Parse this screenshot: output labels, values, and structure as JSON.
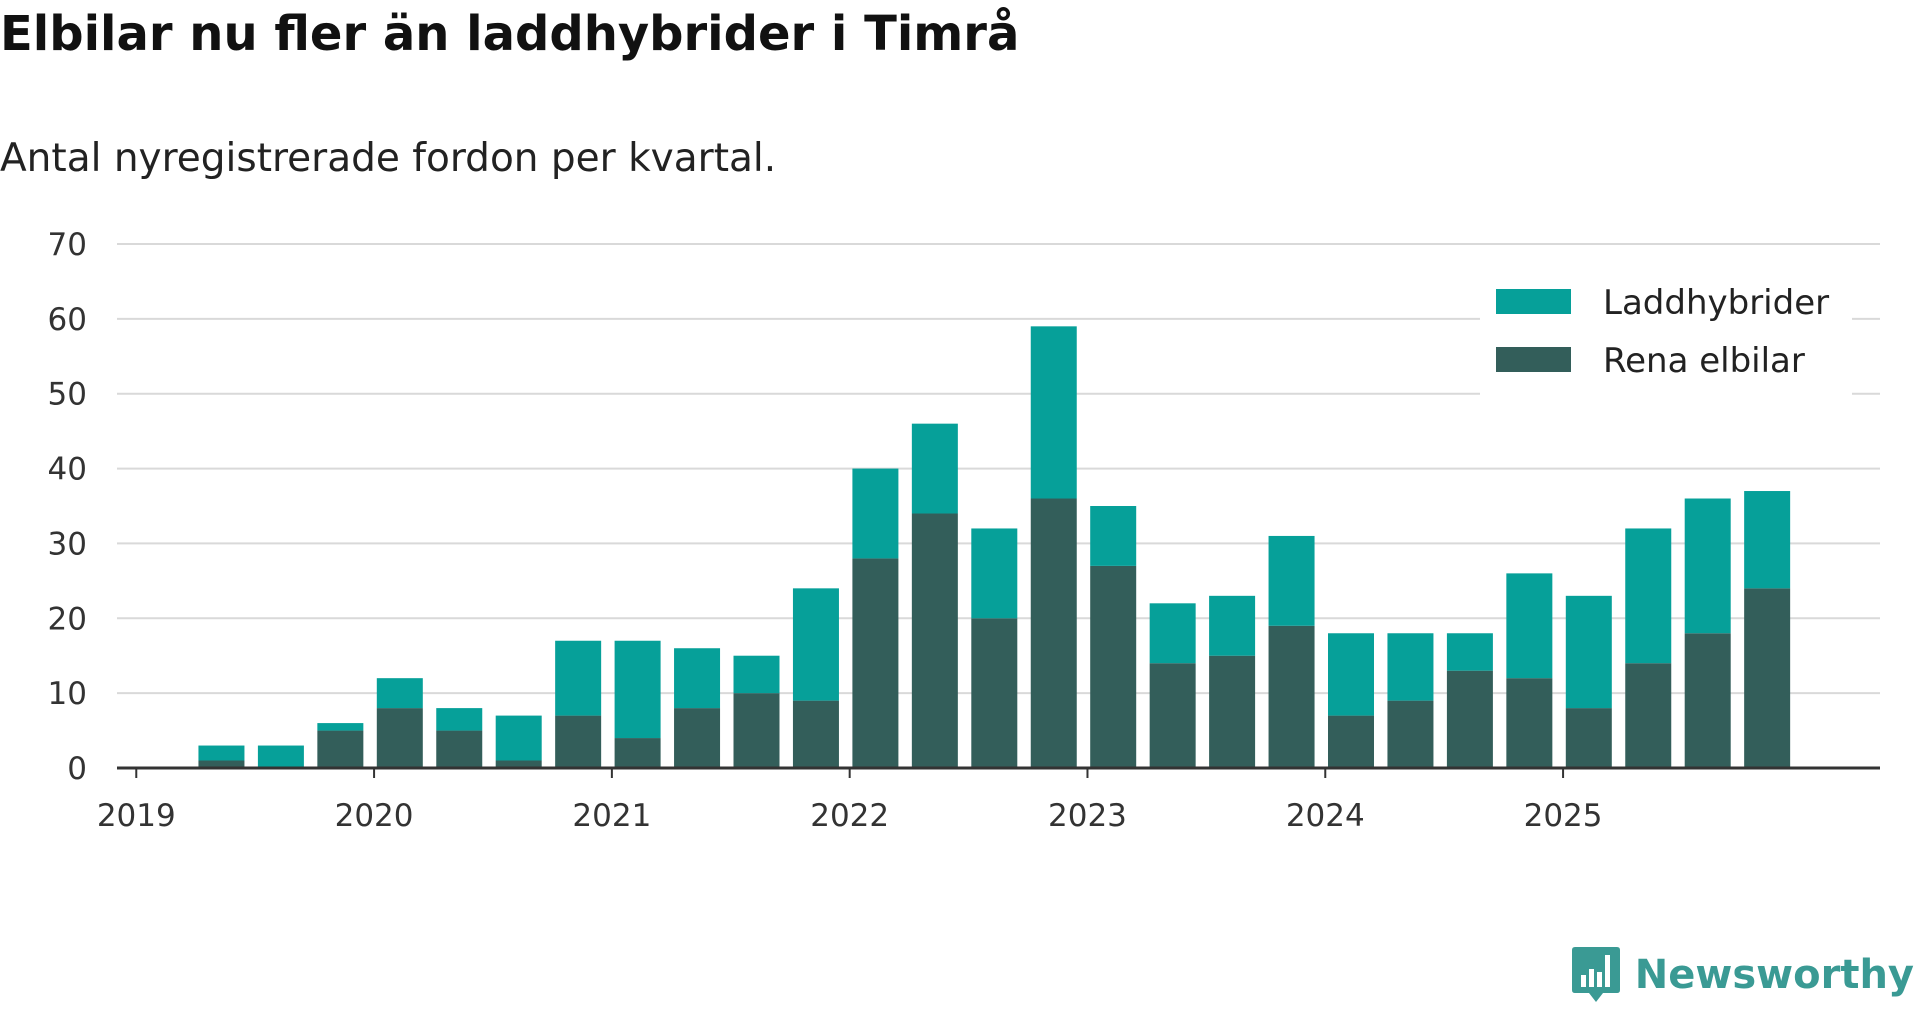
{
  "title": "Elbilar nu fler än laddhybrider i Timrå",
  "subtitle": "Antal nyregistrerade fordon per kvartal.",
  "brand": "Newsworthy",
  "colors": {
    "laddhybrider": "#06a099",
    "rena_elbilar": "#335e5a",
    "grid": "#d9d9d9",
    "axis": "#333333",
    "brand": "#3a9a94"
  },
  "chart_data": {
    "type": "bar",
    "stacked": true,
    "title": "Elbilar nu fler än laddhybrider i Timrå",
    "subtitle": "Antal nyregistrerade fordon per kvartal.",
    "xlabel": "",
    "ylabel": "",
    "ylim": [
      0,
      70
    ],
    "yticks": [
      0,
      10,
      20,
      30,
      40,
      50,
      60,
      70
    ],
    "xtick_labels": [
      "2019",
      "2020",
      "2021",
      "2022",
      "2023",
      "2024",
      "2025"
    ],
    "legend_position": "top-right",
    "categories": [
      "2019 Q1",
      "2019 Q2",
      "2019 Q3",
      "2019 Q4",
      "2020 Q1",
      "2020 Q2",
      "2020 Q3",
      "2020 Q4",
      "2021 Q1",
      "2021 Q2",
      "2021 Q3",
      "2021 Q4",
      "2022 Q1",
      "2022 Q2",
      "2022 Q3",
      "2022 Q4",
      "2023 Q1",
      "2023 Q2",
      "2023 Q3",
      "2023 Q4",
      "2024 Q1",
      "2024 Q2",
      "2024 Q3",
      "2024 Q4",
      "2025 Q1",
      "2025 Q2",
      "2025 Q3",
      "2025 Q4"
    ],
    "series": [
      {
        "name": "Rena elbilar",
        "color": "#335e5a",
        "values": [
          0,
          1,
          0,
          5,
          8,
          5,
          1,
          7,
          4,
          8,
          10,
          9,
          28,
          34,
          20,
          36,
          27,
          14,
          15,
          19,
          7,
          9,
          13,
          12,
          8,
          14,
          18,
          24
        ]
      },
      {
        "name": "Laddhybrider",
        "color": "#06a099",
        "values": [
          0,
          2,
          3,
          1,
          4,
          3,
          6,
          10,
          13,
          8,
          5,
          15,
          12,
          12,
          12,
          23,
          8,
          8,
          8,
          12,
          11,
          9,
          5,
          14,
          15,
          18,
          18,
          13
        ]
      }
    ]
  }
}
